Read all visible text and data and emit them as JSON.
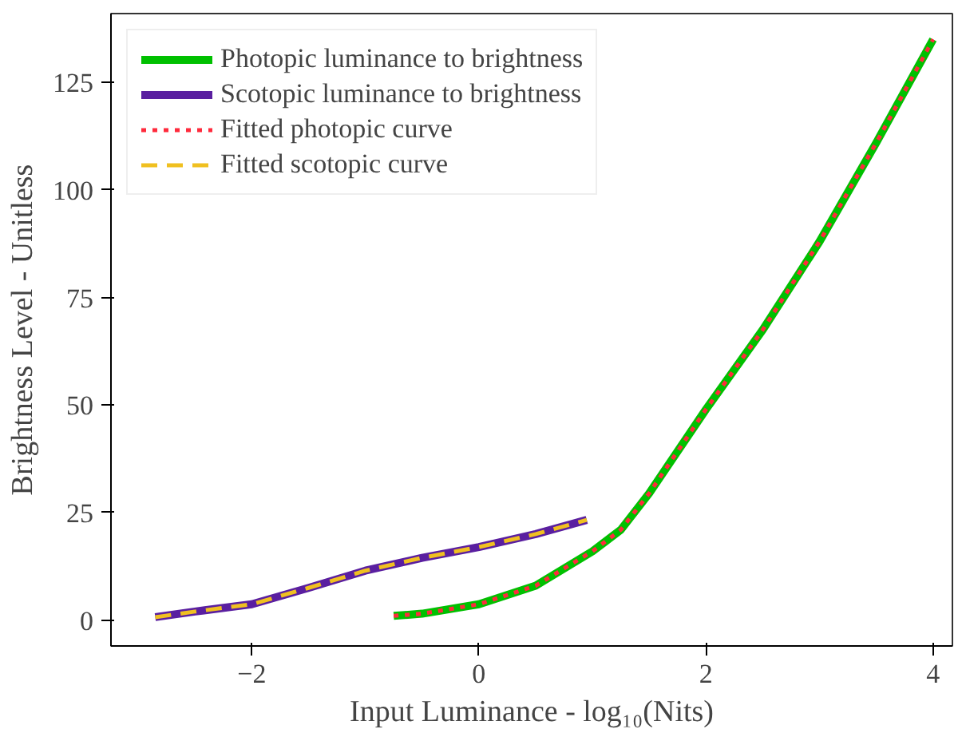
{
  "chart_data": {
    "type": "line",
    "xlabel": "Input Luminance - log₁₀(Nits)",
    "ylabel": "Brightness Level - Unitless",
    "xlim": [
      -3.24,
      4.17
    ],
    "ylim": [
      -6,
      141
    ],
    "xticks": [
      {
        "value": -2,
        "label": "−2"
      },
      0,
      2,
      4
    ],
    "yticks": [
      0,
      25,
      50,
      75,
      100,
      125
    ],
    "grid": false,
    "legend": "top left",
    "marker": "none",
    "series": [
      {
        "name": "Photopic luminance to brightness",
        "color": "#00c000",
        "line_style": "solid",
        "x": [
          -0.75,
          -0.5,
          0,
          0.5,
          1,
          1.25,
          1.5,
          2,
          2.5,
          3,
          3.5,
          4
        ],
        "values": [
          1,
          1.5,
          3.7,
          8,
          16,
          21,
          29.5,
          49,
          67.5,
          88,
          111,
          135
        ]
      },
      {
        "name": "Scotopic luminance to brightness",
        "color": "#5a1fa0",
        "line_style": "solid",
        "x": [
          -2.85,
          -2.5,
          -2,
          -1.5,
          -1,
          -0.5,
          0,
          0.5,
          0.95
        ],
        "values": [
          0.7,
          2,
          3.7,
          7.5,
          11.5,
          14.5,
          17,
          20,
          23.3
        ]
      },
      {
        "name": "Fitted photopic curve",
        "color": "#ff2a3c",
        "line_style": "dotted",
        "x": [
          -0.75,
          -0.5,
          0,
          0.5,
          1,
          1.25,
          1.5,
          2,
          2.5,
          3,
          3.5,
          4
        ],
        "values": [
          1,
          1.5,
          3.7,
          8,
          16,
          21,
          29.5,
          49,
          67.5,
          88,
          111,
          135
        ]
      },
      {
        "name": "Fitted scotopic curve",
        "color": "#f0c020",
        "line_style": "dashed",
        "x": [
          -2.85,
          -2.5,
          -2,
          -1.5,
          -1,
          -0.5,
          0,
          0.5,
          0.95
        ],
        "values": [
          0.7,
          2,
          3.7,
          7.5,
          11.5,
          14.5,
          17,
          20,
          23.3
        ]
      }
    ]
  }
}
